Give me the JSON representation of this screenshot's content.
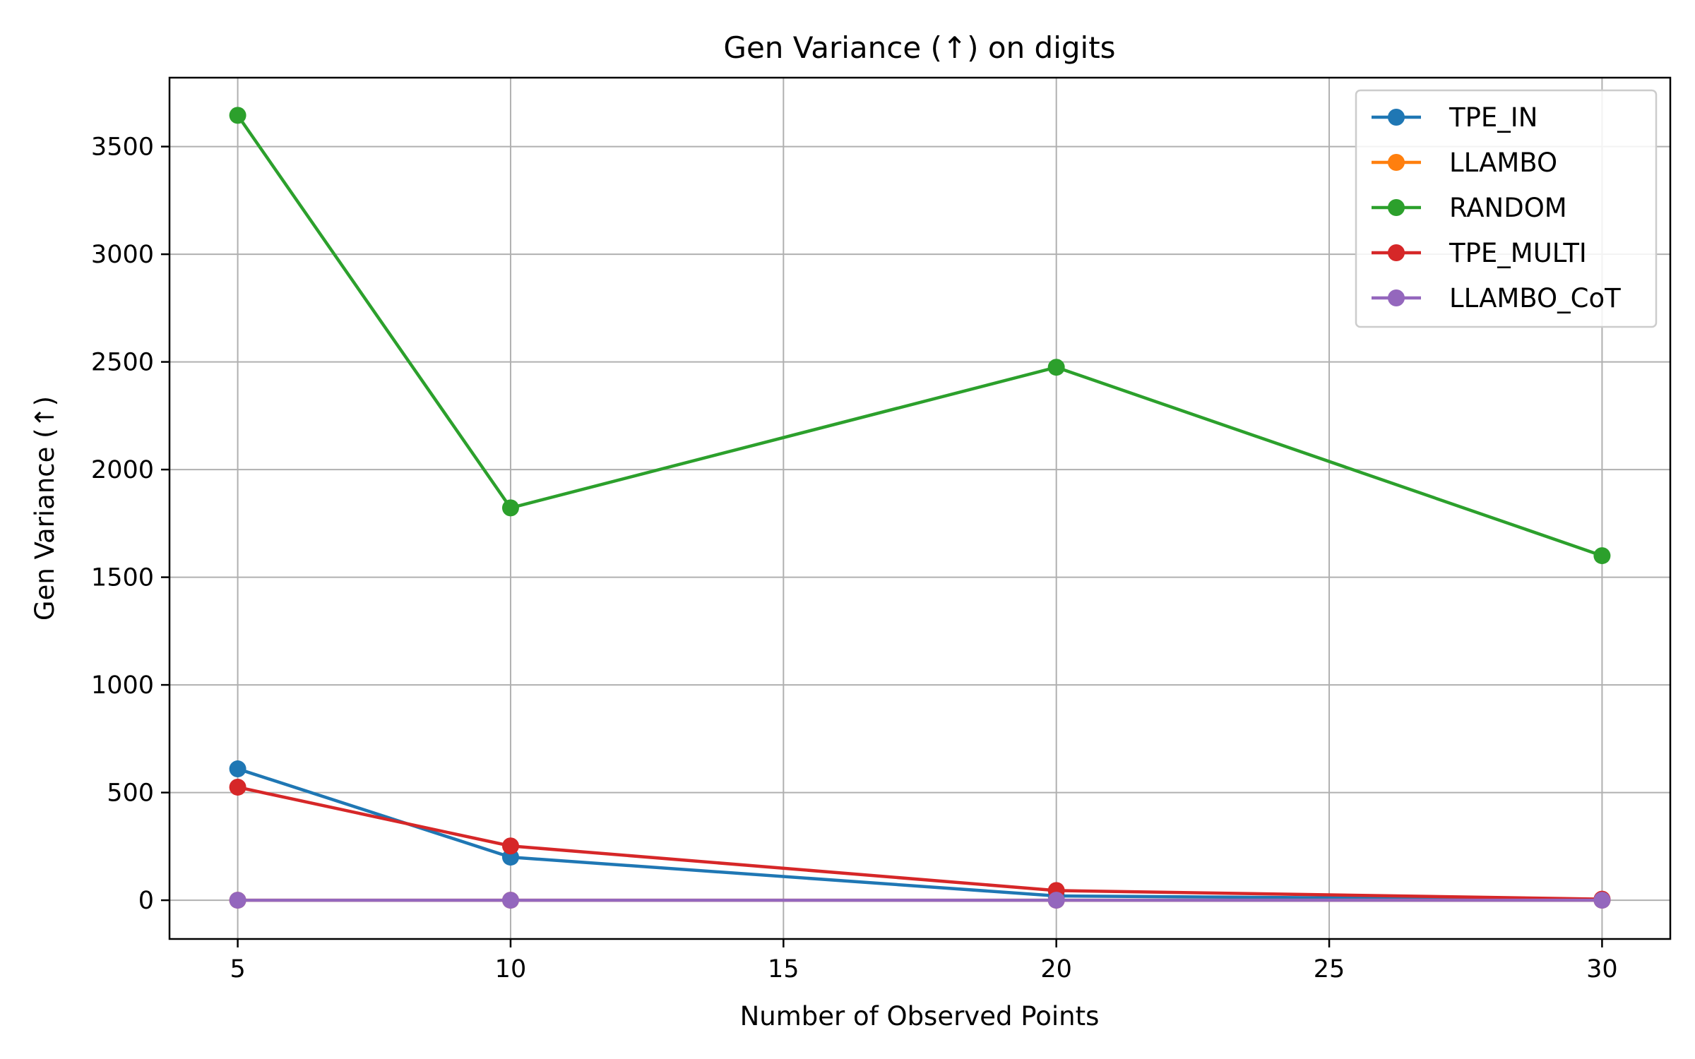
{
  "chart_data": {
    "type": "line",
    "title": "Gen Variance (↑) on digits",
    "xlabel": "Number of Observed Points",
    "ylabel": "Gen Variance (↑)",
    "x": [
      5,
      10,
      20,
      30
    ],
    "xlim": [
      3.75,
      31.25
    ],
    "ylim": [
      -180,
      3820
    ],
    "xticks": [
      5,
      10,
      15,
      20,
      25,
      30
    ],
    "yticks": [
      0,
      500,
      1000,
      1500,
      2000,
      2500,
      3000,
      3500
    ],
    "grid": true,
    "legend_position": "top-right",
    "series": [
      {
        "name": "TPE_IN",
        "color": "#1f77b4",
        "values": [
          610,
          200,
          20,
          2
        ]
      },
      {
        "name": "LLAMBO",
        "color": "#ff7f0e",
        "values": [
          0,
          0,
          0,
          0
        ]
      },
      {
        "name": "RANDOM",
        "color": "#2ca02c",
        "values": [
          3645,
          1822,
          2475,
          1600
        ]
      },
      {
        "name": "TPE_MULTI",
        "color": "#d62728",
        "values": [
          525,
          252,
          45,
          5
        ]
      },
      {
        "name": "LLAMBO_CoT",
        "color": "#9467bd",
        "values": [
          0,
          0,
          0,
          0
        ]
      }
    ]
  }
}
